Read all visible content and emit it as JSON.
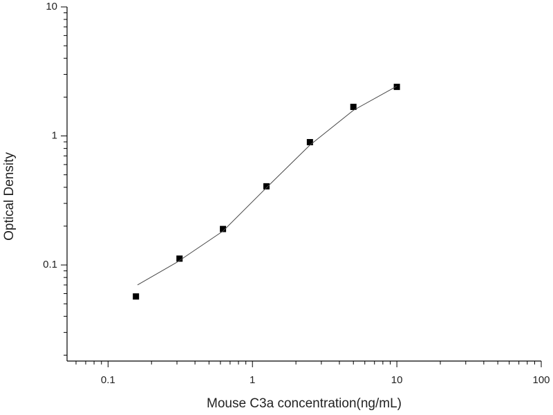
{
  "chart_data": {
    "type": "scatter",
    "x_label": "Mouse C3a concentration(ng/mL)",
    "y_label": "Optical Density",
    "xscale": "log",
    "yscale": "log",
    "xlim": [
      0.052,
      100
    ],
    "ylim": [
      0.018,
      10
    ],
    "xticks": [
      0.1,
      1,
      10,
      100
    ],
    "yticks": [
      0.1,
      1,
      10
    ],
    "series": [
      {
        "mode": "markers",
        "color": "#000000",
        "x": [
          0.156,
          0.3125,
          0.625,
          1.25,
          2.5,
          5,
          10
        ],
        "values": [
          0.057,
          0.112,
          0.19,
          0.407,
          0.895,
          1.68,
          2.4
        ]
      },
      {
        "mode": "line",
        "color": "#444444",
        "x": [
          0.16,
          0.3,
          0.625,
          1.25,
          2.5,
          5,
          10
        ],
        "values": [
          0.07,
          0.105,
          0.183,
          0.397,
          0.85,
          1.58,
          2.43
        ]
      }
    ]
  }
}
